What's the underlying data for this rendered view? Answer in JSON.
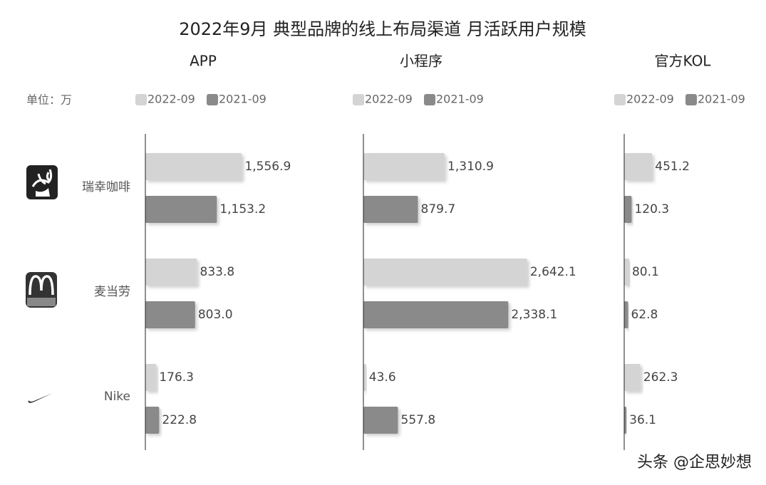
{
  "title": "2022年9月 典型品牌的线上布局渠道 月活跃用户规模",
  "unit": "单位：万",
  "watermark": "头条 @企思妙想",
  "categories": [
    "瑞幸咖啡",
    "麦当劳",
    "Nike"
  ],
  "chart_data": [
    {
      "type": "bar",
      "orientation": "horizontal",
      "title": "APP",
      "xlim": [
        0,
        3000
      ],
      "series": [
        {
          "name": "2022-09",
          "color": "#d4d4d4",
          "values": [
            1556.9,
            833.8,
            176.3
          ],
          "value_labels": [
            "1,556.9",
            "833.8",
            "176.3"
          ]
        },
        {
          "name": "2021-09",
          "color": "#8a8a8a",
          "values": [
            1153.2,
            803.0,
            222.8
          ],
          "value_labels": [
            "1,153.2",
            "803.0",
            "222.8"
          ]
        }
      ]
    },
    {
      "type": "bar",
      "orientation": "horizontal",
      "title": "小程序",
      "xlim": [
        0,
        3000
      ],
      "series": [
        {
          "name": "2022-09",
          "color": "#d4d4d4",
          "values": [
            1310.9,
            2642.1,
            43.6
          ],
          "value_labels": [
            "1,310.9",
            "2,642.1",
            "43.6"
          ]
        },
        {
          "name": "2021-09",
          "color": "#8a8a8a",
          "values": [
            879.7,
            2338.1,
            557.8
          ],
          "value_labels": [
            "879.7",
            "2,338.1",
            "557.8"
          ]
        }
      ]
    },
    {
      "type": "bar",
      "orientation": "horizontal",
      "title": "官方KOL",
      "xlim": [
        0,
        3000
      ],
      "series": [
        {
          "name": "2022-09",
          "color": "#d4d4d4",
          "values": [
            451.2,
            80.1,
            262.3
          ],
          "value_labels": [
            "451.2",
            "80.1",
            "262.3"
          ]
        },
        {
          "name": "2021-09",
          "color": "#8a8a8a",
          "values": [
            120.3,
            62.8,
            36.1
          ],
          "value_labels": [
            "120.3",
            "62.8",
            "36.1"
          ]
        }
      ]
    }
  ]
}
